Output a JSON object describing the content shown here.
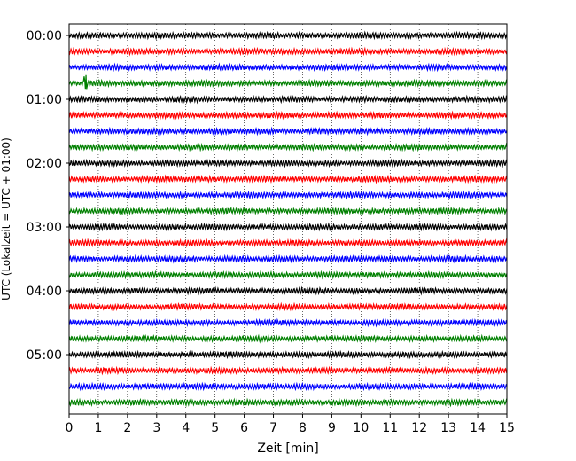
{
  "chart_data": {
    "type": "line",
    "title": "",
    "xlabel": "Zeit  [min]",
    "ylabel": "UTC (Lokalzeit = UTC + 01:00)",
    "xlim": [
      0,
      15
    ],
    "x_ticks": [
      "0",
      "1",
      "2",
      "3",
      "4",
      "5",
      "6",
      "7",
      "8",
      "9",
      "10",
      "11",
      "12",
      "13",
      "14",
      "15"
    ],
    "y_tick_labels": [
      "00:00",
      "01:00",
      "02:00",
      "03:00",
      "04:00",
      "05:00"
    ],
    "grid": "vertical dotted lines at each minute",
    "trace_interval_minutes": 15,
    "trace_count": 24,
    "color_cycle": [
      "#000000",
      "#ff0000",
      "#0000ff",
      "#008000"
    ],
    "traces": [
      {
        "start": "00:00",
        "color": "#000000"
      },
      {
        "start": "00:15",
        "color": "#ff0000"
      },
      {
        "start": "00:30",
        "color": "#0000ff"
      },
      {
        "start": "00:45",
        "color": "#008000",
        "event_minute": 0.5
      },
      {
        "start": "01:00",
        "color": "#000000"
      },
      {
        "start": "01:15",
        "color": "#ff0000"
      },
      {
        "start": "01:30",
        "color": "#0000ff"
      },
      {
        "start": "01:45",
        "color": "#008000"
      },
      {
        "start": "02:00",
        "color": "#000000"
      },
      {
        "start": "02:15",
        "color": "#ff0000"
      },
      {
        "start": "02:30",
        "color": "#0000ff"
      },
      {
        "start": "02:45",
        "color": "#008000"
      },
      {
        "start": "03:00",
        "color": "#000000"
      },
      {
        "start": "03:15",
        "color": "#ff0000"
      },
      {
        "start": "03:30",
        "color": "#0000ff"
      },
      {
        "start": "03:45",
        "color": "#008000"
      },
      {
        "start": "04:00",
        "color": "#000000"
      },
      {
        "start": "04:15",
        "color": "#ff0000"
      },
      {
        "start": "04:30",
        "color": "#0000ff"
      },
      {
        "start": "04:45",
        "color": "#008000"
      },
      {
        "start": "05:00",
        "color": "#000000"
      },
      {
        "start": "05:15",
        "color": "#ff0000"
      },
      {
        "start": "05:30",
        "color": "#0000ff"
      },
      {
        "start": "05:45",
        "color": "#008000"
      }
    ]
  }
}
